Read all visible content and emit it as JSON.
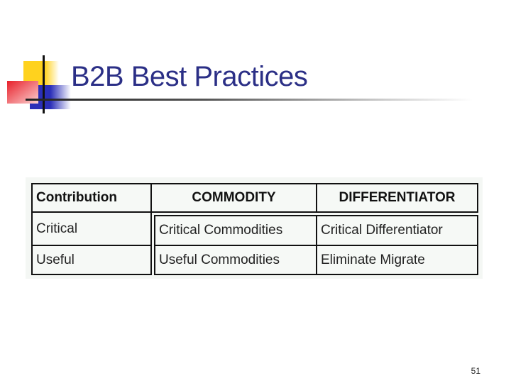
{
  "slide": {
    "title": "B2B Best Practices",
    "page_number": "51"
  },
  "table": {
    "headers": [
      "Contribution",
      "COMMODITY",
      "DIFFERENTIATOR"
    ],
    "rows": [
      [
        "Critical",
        "Critical Commodities",
        "Critical Differentiator"
      ],
      [
        "Useful",
        "Useful Commodities",
        "Eliminate Migrate"
      ]
    ]
  },
  "colors": {
    "title": "#2b2f86",
    "logo_yellow": "#ffd21e",
    "logo_red": "#e8202a",
    "logo_blue": "#2b2fb8"
  }
}
